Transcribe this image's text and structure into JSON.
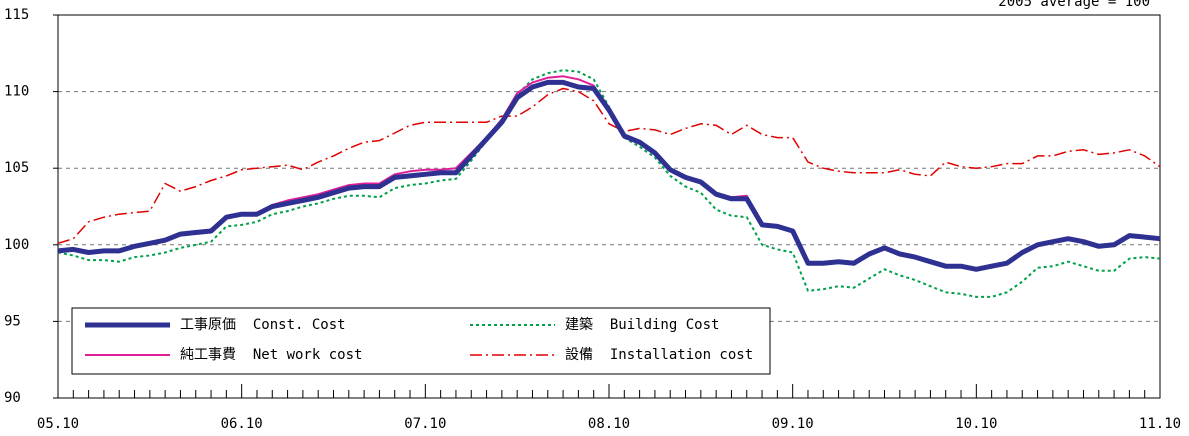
{
  "chart_data": {
    "type": "line",
    "subtitle": "2005 average = 100",
    "categories": [
      "05.10",
      null,
      null,
      null,
      null,
      null,
      null,
      null,
      null,
      null,
      null,
      null,
      "06.10",
      null,
      null,
      null,
      null,
      null,
      null,
      null,
      null,
      null,
      null,
      null,
      "07.10",
      null,
      null,
      null,
      null,
      null,
      null,
      null,
      null,
      null,
      null,
      null,
      "08.10",
      null,
      null,
      null,
      null,
      null,
      null,
      null,
      null,
      null,
      null,
      null,
      "09.10",
      null,
      null,
      null,
      null,
      null,
      null,
      null,
      null,
      null,
      null,
      null,
      "10.10",
      null,
      null,
      null,
      null,
      null,
      null,
      null,
      null,
      null,
      null,
      null,
      "11.10"
    ],
    "series": [
      {
        "name": "工事原価  Const. Cost",
        "color": "#2e3192",
        "width": 5,
        "dash": "solid",
        "values": [
          99.6,
          99.7,
          99.5,
          99.6,
          99.6,
          99.9,
          100.1,
          100.3,
          100.7,
          100.8,
          100.9,
          101.8,
          102.0,
          102.0,
          102.5,
          102.7,
          102.9,
          103.1,
          103.4,
          103.7,
          103.8,
          103.8,
          104.4,
          104.5,
          104.6,
          104.7,
          104.7,
          105.8,
          106.9,
          108.0,
          109.6,
          110.3,
          110.6,
          110.6,
          110.3,
          110.2,
          108.8,
          107.1,
          106.7,
          106.0,
          104.9,
          104.4,
          104.1,
          103.3,
          103.0,
          103.0,
          101.3,
          101.2,
          100.9,
          98.8,
          98.8,
          98.9,
          98.8,
          99.4,
          99.8,
          99.4,
          99.2,
          98.9,
          98.6,
          98.6,
          98.4,
          98.6,
          98.8,
          99.5,
          100.0,
          100.2,
          100.4,
          100.2,
          99.9,
          100.0,
          100.6,
          100.5,
          100.4
        ]
      },
      {
        "name": "純工事費  Net work cost",
        "color": "#e0209a",
        "width": 2,
        "dash": "solid",
        "values": [
          99.6,
          99.7,
          99.5,
          99.6,
          99.6,
          99.9,
          100.1,
          100.3,
          100.7,
          100.8,
          100.9,
          101.8,
          102.0,
          102.1,
          102.6,
          102.9,
          103.1,
          103.3,
          103.6,
          103.9,
          104.0,
          104.0,
          104.6,
          104.8,
          104.9,
          104.9,
          105.0,
          106.0,
          107.0,
          108.2,
          109.9,
          110.6,
          110.9,
          111.0,
          110.8,
          110.4,
          108.9,
          107.1,
          106.6,
          105.9,
          104.9,
          104.4,
          104.2,
          103.4,
          103.1,
          103.2,
          101.3,
          101.2,
          100.9,
          98.8,
          98.8,
          98.9,
          98.7,
          99.4,
          99.8,
          99.4,
          99.2,
          98.9,
          98.6,
          98.6,
          98.4,
          98.5,
          98.8,
          99.5,
          100.0,
          100.2,
          100.4,
          100.2,
          99.9,
          100.0,
          100.6,
          100.5,
          100.4
        ]
      },
      {
        "name": "建築  Building Cost",
        "color": "#00a04a",
        "width": 2,
        "dash": "3,3",
        "values": [
          99.5,
          99.3,
          99.0,
          99.0,
          98.9,
          99.2,
          99.3,
          99.5,
          99.8,
          100.0,
          100.2,
          101.2,
          101.3,
          101.5,
          102.0,
          102.2,
          102.5,
          102.7,
          103.0,
          103.2,
          103.2,
          103.1,
          103.7,
          103.9,
          104.0,
          104.2,
          104.3,
          105.5,
          106.8,
          108.0,
          109.8,
          110.8,
          111.2,
          111.4,
          111.3,
          110.8,
          109.0,
          107.0,
          106.4,
          105.7,
          104.5,
          103.8,
          103.4,
          102.3,
          101.9,
          101.8,
          100.0,
          99.7,
          99.5,
          97.0,
          97.1,
          97.3,
          97.2,
          97.8,
          98.4,
          98.0,
          97.7,
          97.3,
          96.9,
          96.8,
          96.6,
          96.6,
          96.9,
          97.6,
          98.5,
          98.6,
          98.9,
          98.6,
          98.3,
          98.3,
          99.1,
          99.2,
          99.1
        ]
      },
      {
        "name": "設備  Installation cost",
        "color": "#e00000",
        "width": 1.5,
        "dash": "12,4,2,4",
        "values": [
          100.1,
          100.4,
          101.5,
          101.8,
          102.0,
          102.1,
          102.2,
          104.0,
          103.5,
          103.8,
          104.2,
          104.5,
          104.9,
          105.0,
          105.1,
          105.2,
          104.9,
          105.4,
          105.8,
          106.3,
          106.7,
          106.8,
          107.3,
          107.8,
          108.0,
          108.0,
          108.0,
          108.0,
          108.0,
          108.4,
          108.4,
          109.0,
          109.8,
          110.2,
          110.0,
          109.4,
          107.9,
          107.4,
          107.6,
          107.5,
          107.2,
          107.6,
          107.9,
          107.8,
          107.2,
          107.8,
          107.2,
          107.0,
          107.0,
          105.4,
          105.0,
          104.8,
          104.7,
          104.7,
          104.7,
          104.9,
          104.6,
          104.5,
          105.4,
          105.1,
          105.0,
          105.1,
          105.3,
          105.3,
          105.8,
          105.8,
          106.1,
          106.2,
          105.9,
          106.0,
          106.2,
          105.8,
          105.1
        ]
      }
    ],
    "ylim": [
      90,
      115
    ],
    "yticks": [
      90,
      95,
      100,
      105,
      110,
      115
    ],
    "grid": true
  }
}
